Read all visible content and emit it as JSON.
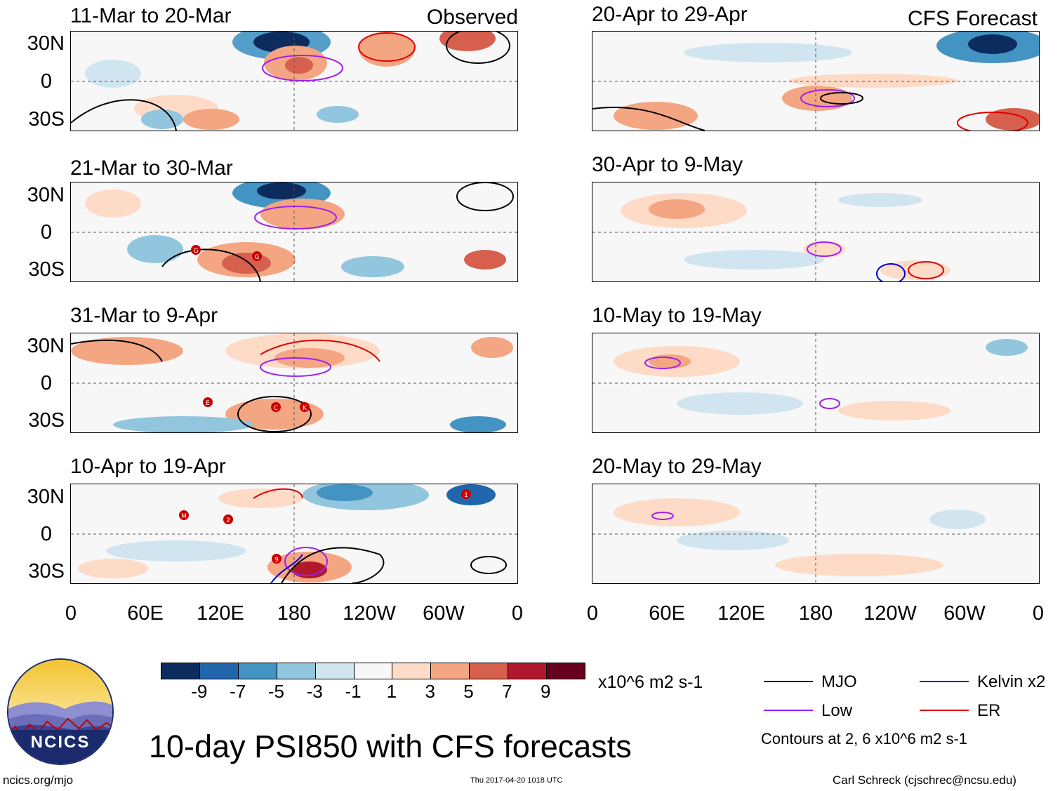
{
  "panels": [
    {
      "title": "11-Mar to 20-Mar",
      "tag": "Observed"
    },
    {
      "title": "20-Apr to 29-Apr",
      "tag": "CFS Forecast"
    },
    {
      "title": "21-Mar to 30-Mar",
      "tag": ""
    },
    {
      "title": "30-Apr to 9-May",
      "tag": ""
    },
    {
      "title": "31-Mar to 9-Apr",
      "tag": ""
    },
    {
      "title": "10-May to 19-May",
      "tag": ""
    },
    {
      "title": "10-Apr to 19-Apr",
      "tag": ""
    },
    {
      "title": "20-May to 29-May",
      "tag": ""
    }
  ],
  "lat_labels": [
    "30N",
    "0",
    "30S"
  ],
  "lon_labels": [
    "0",
    "60E",
    "120E",
    "180",
    "120W",
    "60W",
    "0"
  ],
  "colorbar": {
    "colors": [
      "#0c2c5e",
      "#2166ac",
      "#4393c3",
      "#92c5de",
      "#d1e5f0",
      "#f7f7f7",
      "#fddbc7",
      "#f4a582",
      "#d6604d",
      "#b2182b",
      "#67001f"
    ],
    "labels": [
      "-9",
      "-7",
      "-5",
      "-3",
      "-1",
      "1",
      "3",
      "5",
      "7",
      "9"
    ],
    "units": "x10^6 m2 s-1"
  },
  "legend": {
    "items": [
      {
        "label": "MJO",
        "color": "#000000"
      },
      {
        "label": "Kelvin x2",
        "color": "#0000cc"
      },
      {
        "label": "Low",
        "color": "#a020f0"
      },
      {
        "label": "ER",
        "color": "#e00000"
      }
    ],
    "contours_note": "Contours at 2, 6 x10^6 m2 s-1"
  },
  "logo": {
    "text": "NCICS"
  },
  "main_title": "10-day PSI850 with CFS forecasts",
  "footer": {
    "left": "ncics.org/mjo",
    "center": "Thu 2017-04-20 1018 UTC",
    "right": "Carl Schreck (cjschrec@ncsu.edu)"
  },
  "storm_markers": [
    "G",
    "G",
    "E",
    "C",
    "K",
    "M",
    "2",
    "9",
    "1"
  ]
}
